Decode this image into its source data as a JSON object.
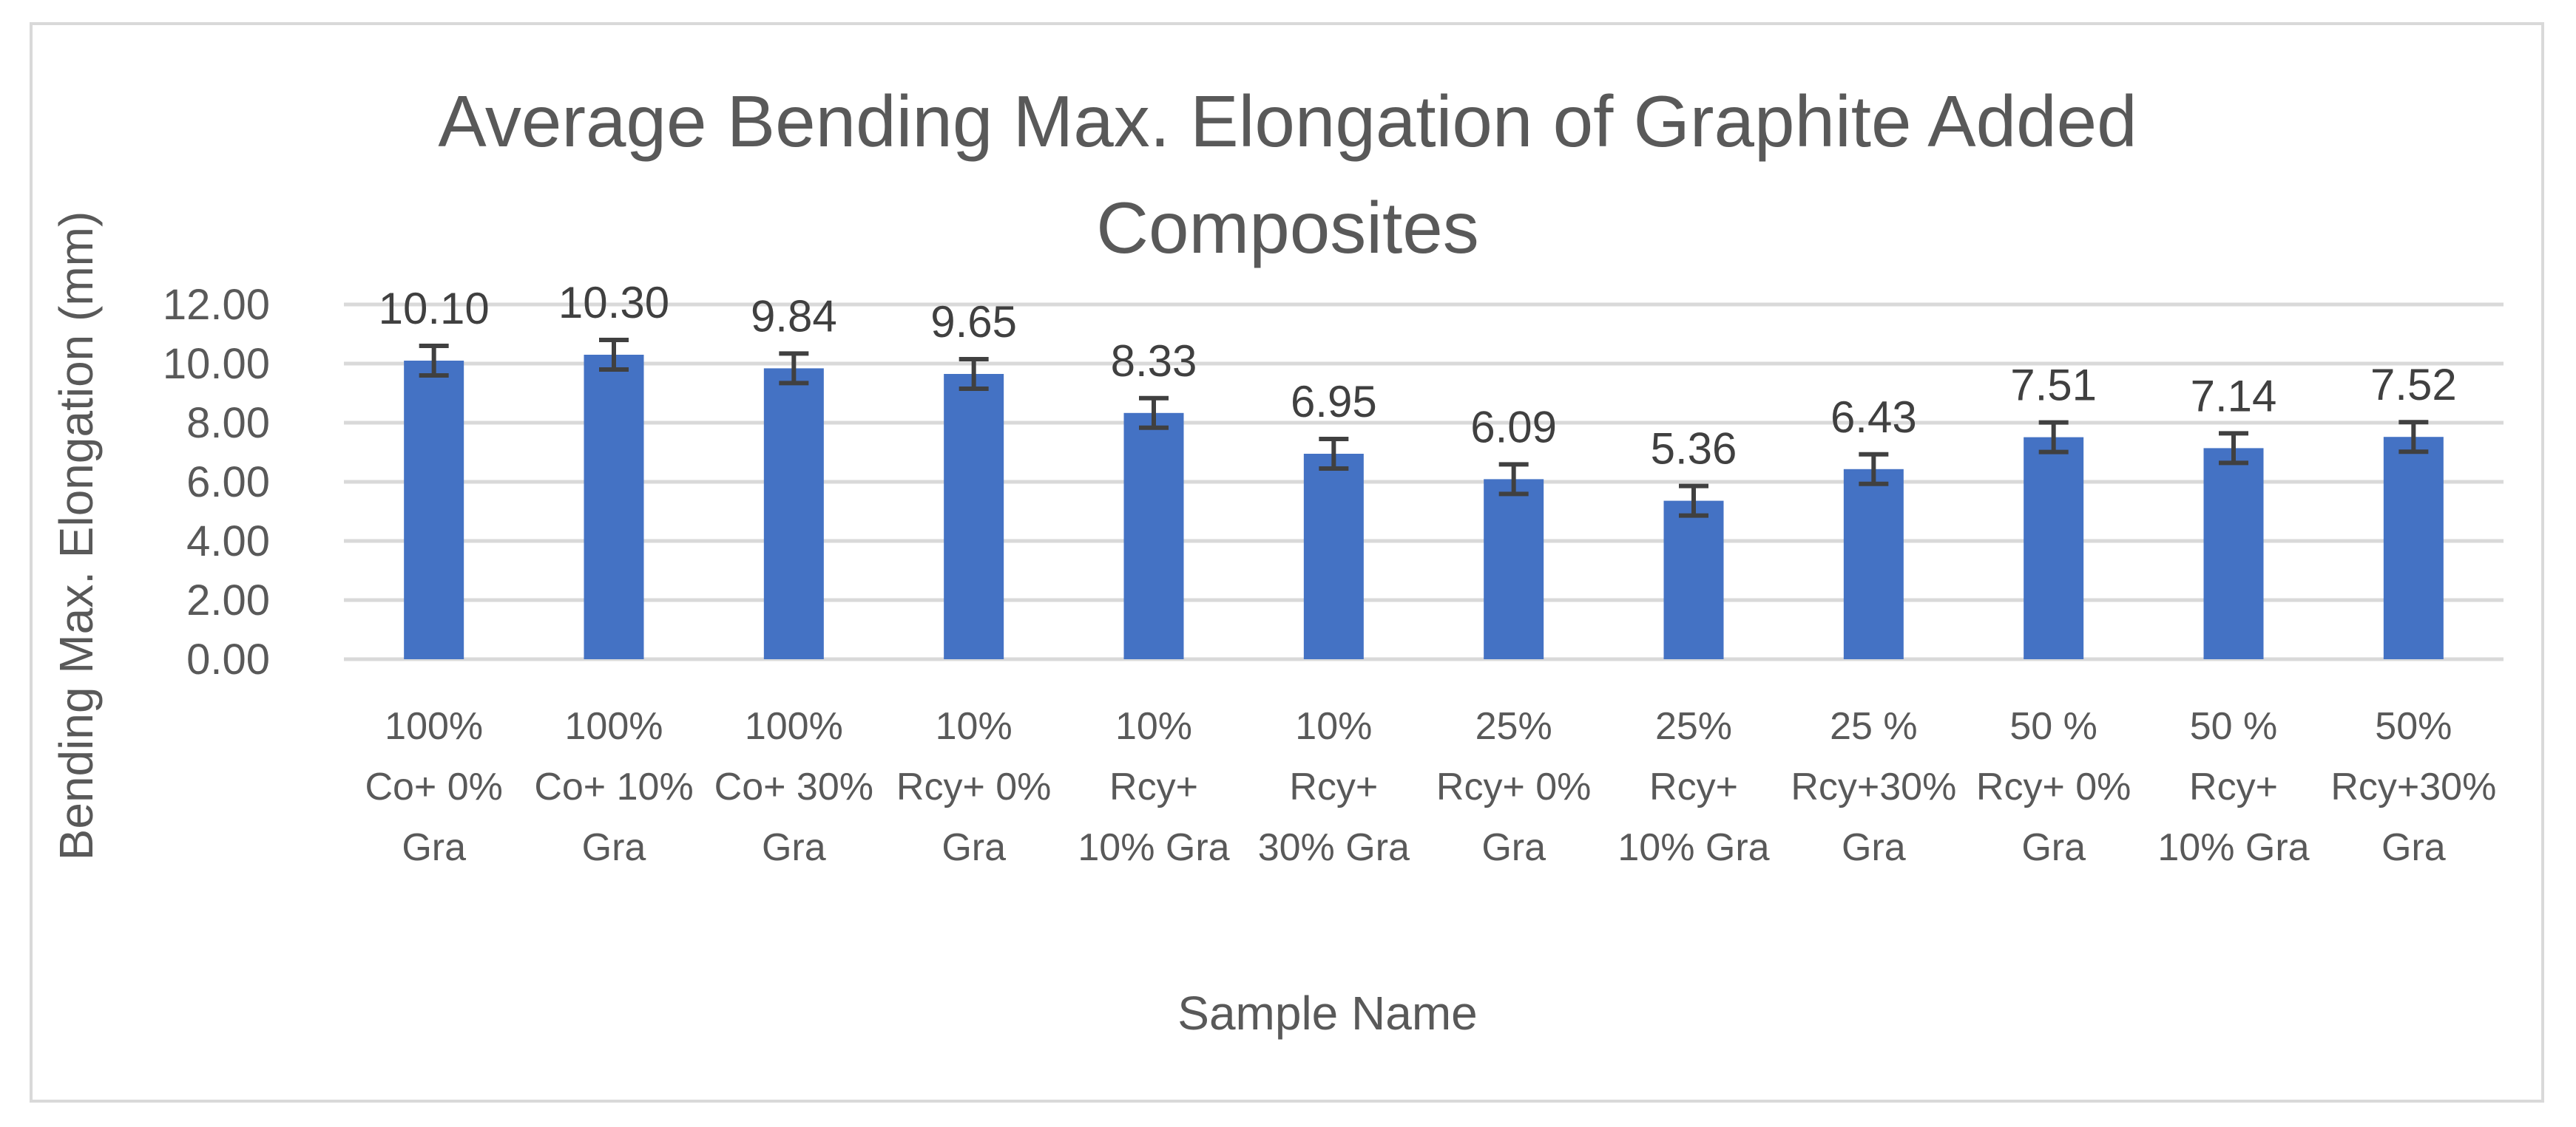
{
  "chart_data": {
    "type": "bar",
    "title": "Average Bending Max. Elongation of Graphite Added Composites",
    "title_lines": [
      "Average Bending Max. Elongation of Graphite Added",
      "Composites"
    ],
    "xlabel": "Sample Name",
    "ylabel": "Bending Max. Elongation (mm)",
    "ylim": [
      0,
      12
    ],
    "yticks": [
      "0.00",
      "2.00",
      "4.00",
      "6.00",
      "8.00",
      "10.00",
      "12.00"
    ],
    "grid": true,
    "legend": "none",
    "categories": [
      "100% Co+ 0% Gra",
      "100% Co+ 10% Gra",
      "100% Co+ 30% Gra",
      "10% Rcy+ 0% Gra",
      "10% Rcy+ 10% Gra",
      "10% Rcy+ 30% Gra",
      "25% Rcy+ 0% Gra",
      "25% Rcy+ 10% Gra",
      "25 % Rcy+30% Gra",
      "50 % Rcy+ 0% Gra",
      "50 % Rcy+ 10% Gra",
      "50% Rcy+30% Gra"
    ],
    "category_lines": [
      [
        "100%",
        "Co+ 0%",
        "Gra"
      ],
      [
        "100%",
        "Co+ 10%",
        "Gra"
      ],
      [
        "100%",
        "Co+ 30%",
        "Gra"
      ],
      [
        "10%",
        "Rcy+ 0%",
        "Gra"
      ],
      [
        "10%",
        "Rcy+",
        "10% Gra"
      ],
      [
        "10%",
        "Rcy+",
        "30% Gra"
      ],
      [
        "25%",
        "Rcy+ 0%",
        "Gra"
      ],
      [
        "25%",
        "Rcy+",
        "10% Gra"
      ],
      [
        "25 %",
        "Rcy+30%",
        "Gra"
      ],
      [
        "50 %",
        "Rcy+ 0%",
        "Gra"
      ],
      [
        "50 %",
        "Rcy+",
        "10% Gra"
      ],
      [
        "50%",
        "Rcy+30%",
        "Gra"
      ]
    ],
    "values": [
      10.1,
      10.3,
      9.84,
      9.65,
      8.33,
      6.95,
      6.09,
      5.36,
      6.43,
      7.51,
      7.14,
      7.52
    ],
    "value_labels": [
      "10.10",
      "10.30",
      "9.84",
      "9.65",
      "8.33",
      "6.95",
      "6.09",
      "5.36",
      "6.43",
      "7.51",
      "7.14",
      "7.52"
    ],
    "error": [
      0.5,
      0.5,
      0.5,
      0.5,
      0.5,
      0.5,
      0.5,
      0.5,
      0.5,
      0.5,
      0.5,
      0.5
    ],
    "colors": {
      "bar": "#4472c4",
      "error_bar": "#404040",
      "grid": "#d9d9d9",
      "text": "#595959"
    }
  }
}
